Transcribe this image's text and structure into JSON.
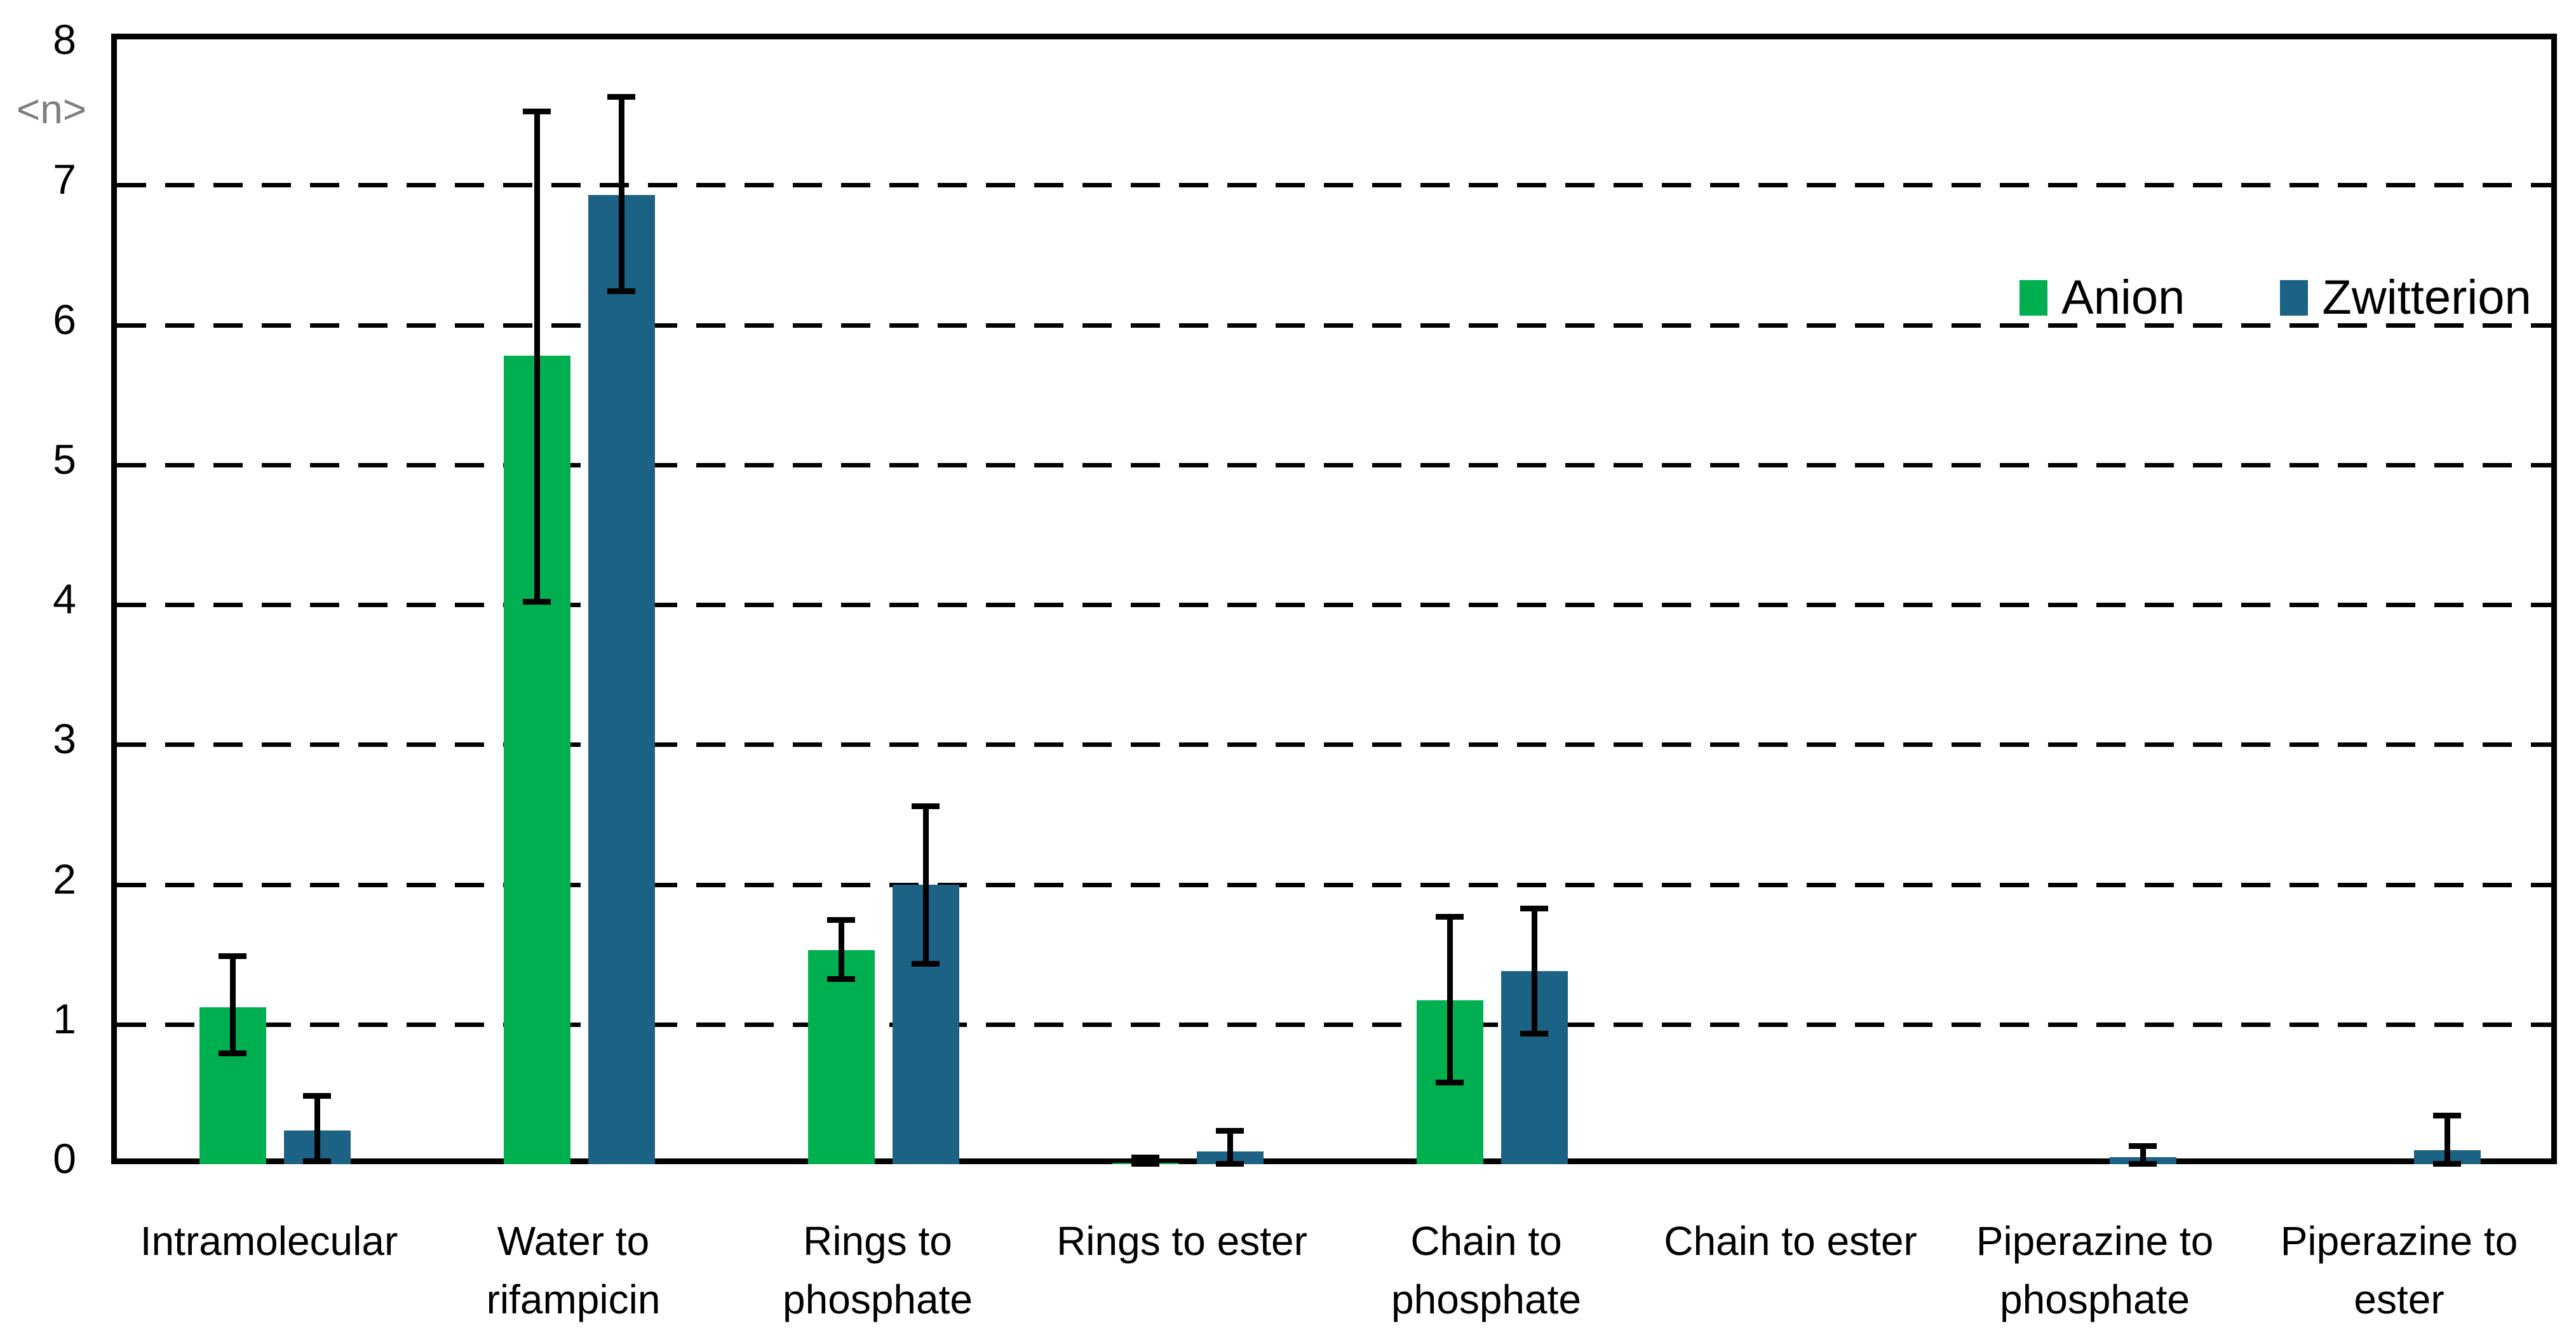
{
  "y_axis": {
    "title": "<n>",
    "title_color": "#7f7f7f",
    "ticks": [
      0,
      1,
      2,
      3,
      4,
      5,
      6,
      7,
      8
    ],
    "min": 0,
    "max": 8
  },
  "legend": {
    "items": [
      {
        "label": "Anion",
        "color": "#00B050"
      },
      {
        "label": "Zwitterion",
        "color": "#1C6285"
      }
    ],
    "position": "top-right-inside"
  },
  "chart_data": {
    "type": "bar",
    "title": "",
    "xlabel": "",
    "ylabel": "<n>",
    "ylim": [
      0,
      8
    ],
    "grid": "horizontal-dashed-at-integers",
    "legend_position": "top-right inside plot",
    "categories": [
      "Intramolecular",
      "Water to rifampicin",
      "Rings to phosphate",
      "Rings to ester",
      "Chain to phosphate",
      "Chain to ester",
      "Piperazine to phosphate",
      "Piperazine to ester"
    ],
    "category_label_lines": [
      [
        "Intramolecular"
      ],
      [
        "Water to",
        "rifampicin"
      ],
      [
        "Rings to",
        "phosphate"
      ],
      [
        "Rings to ester"
      ],
      [
        "Chain to",
        "phosphate"
      ],
      [
        "Chain to ester"
      ],
      [
        "Piperazine to",
        "phosphate"
      ],
      [
        "Piperazine to",
        "ester"
      ]
    ],
    "series": [
      {
        "name": "Anion",
        "color": "#00B050",
        "values": [
          1.12,
          5.78,
          1.53,
          0.01,
          1.17,
          0,
          0,
          0
        ],
        "error_up": [
          0.37,
          1.75,
          0.22,
          0.04,
          0.6,
          0,
          0,
          0
        ],
        "error_down": [
          0.33,
          1.76,
          0.21,
          0.01,
          0.59,
          0,
          0,
          0
        ],
        "error_visible": [
          true,
          true,
          true,
          true,
          true,
          false,
          false,
          false
        ]
      },
      {
        "name": "Zwitterion",
        "color": "#1C6285",
        "values": [
          0.24,
          6.93,
          2.0,
          0.09,
          1.38,
          0,
          0.05,
          0.1
        ],
        "error_up": [
          0.25,
          0.7,
          0.56,
          0.15,
          0.45,
          0,
          0.08,
          0.25
        ],
        "error_down": [
          0.22,
          0.69,
          0.57,
          0.09,
          0.45,
          0,
          0.05,
          0.1
        ],
        "error_visible": [
          true,
          true,
          true,
          true,
          true,
          false,
          true,
          true
        ]
      }
    ]
  }
}
